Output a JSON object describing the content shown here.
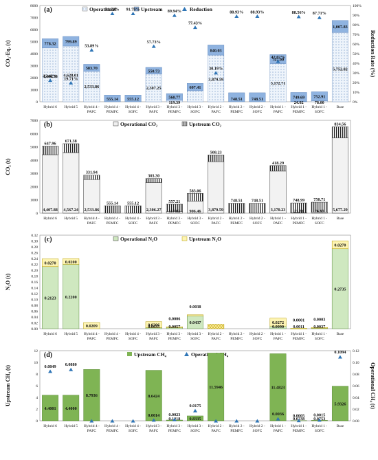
{
  "categories": [
    "Hybrid 6",
    "Hybrid 5",
    "Hybrid 4 - PAFC",
    "Hybrid 4 - PEMFC",
    "Hybrid 4 - SOFC",
    "Hybrid 3 - PAFC",
    "Hybrid 3 - PEMFC",
    "Hybrid 3 - SOFC",
    "Hybrid 2 - PAFC",
    "Hybrid 2 - PEMFC",
    "Hybrid 2 - SOFC",
    "Hybrid 1 - PAFC",
    "Hybrid 1 - PEMFC",
    "Hybrid 1 - SOFC",
    "Base"
  ],
  "colors": {
    "upstream_blue": "#8fb3e0",
    "op_blue": "#e6effa",
    "green": "#7fb454",
    "light_green": "#cfe8c0",
    "yellow": "#fdf4b3",
    "marker": "#2e75b6",
    "gray_fill": "#f2f2f2"
  },
  "chart_data": [
    {
      "panel": "(a)",
      "type": "bar",
      "stacked": true,
      "ylabel": "CO₂-Eq. (t)",
      "y2label": "Reduction Rate (%)",
      "ylim": [
        0,
        8000
      ],
      "y2lim": [
        0,
        100
      ],
      "yticks": [
        "0",
        "1000",
        "2000",
        "3000",
        "4000",
        "5000",
        "6000",
        "7000",
        "8000"
      ],
      "y2ticks": [
        "0%",
        "10%",
        "20%",
        "30%",
        "40%",
        "50%",
        "60%",
        "70%",
        "80%",
        "90%",
        "100%"
      ],
      "legend": [
        "Operational",
        "Upstream",
        "Reduction"
      ],
      "series": [
        {
          "name": "Operational",
          "values": [
            4466.53,
            4628.01,
            2533.86,
            0,
            0,
            2307.25,
            119.39,
            918.52,
            3879.59,
            0,
            0,
            3172.71,
            24.02,
            78.0,
            5752.82
          ],
          "labels": [
            "4,466.53",
            "4,628.01",
            "2,533.86",
            "",
            "",
            "2,307.25",
            "119.39",
            "918.52",
            "3,879.59",
            "",
            "",
            "3,172.71",
            "24.02",
            "78.00",
            "5,752.82"
          ]
        },
        {
          "name": "Upstream",
          "values": [
            778.32,
            799.89,
            583.7,
            555.14,
            555.12,
            550.73,
            560.77,
            607.41,
            840.03,
            748.51,
            748.51,
            747.0,
            749.69,
            752.91,
            1007.83
          ],
          "labels": [
            "778.32",
            "799.89",
            "583.70",
            "555.14",
            "555.12",
            "550.73",
            "560.77",
            "607.41",
            "840.03",
            "748.51",
            "748.51",
            "747.00",
            "749.69",
            "752.91",
            "1,007.83"
          ]
        },
        {
          "name": "Reduction",
          "values": [
            22.42,
            19.71,
            53.89,
            91.79,
            91.79,
            57.73,
            89.94,
            77.43,
            30.19,
            88.93,
            88.93,
            42.02,
            88.56,
            87.71,
            null
          ],
          "labels": [
            "22.42%",
            "19.71%",
            "53.89%",
            "91.79%",
            "91.79%",
            "57.73%",
            "89.94%",
            "77.43%",
            "30.19%",
            "88.93%",
            "88.93%",
            "42.02%",
            "88.56%",
            "87.71%",
            ""
          ]
        }
      ]
    },
    {
      "panel": "(b)",
      "type": "bar",
      "stacked": true,
      "ylabel": "CO₂ (t)",
      "ylim": [
        0,
        7000
      ],
      "yticks": [
        "0",
        "1000",
        "2000",
        "3000",
        "4000",
        "5000",
        "6000",
        "7000"
      ],
      "legend": [
        "Operational CO₂",
        "Upstream CO₂"
      ],
      "series": [
        {
          "name": "Operational CO₂",
          "values": [
            4407.88,
            4567.24,
            2533.86,
            0,
            0,
            2306.27,
            117.82,
            906.46,
            3879.59,
            0,
            0,
            3170.23,
            23.7,
            76.97,
            5677.29
          ],
          "labels": [
            "4,407.88",
            "4,567.24",
            "2,533.86",
            "",
            "",
            "2,306.27",
            "117.82",
            "906.46",
            "3,879.59",
            "",
            "",
            "3,170.23",
            "23.70",
            "76.97",
            "5,677.29"
          ]
        },
        {
          "name": "Upstream CO₂",
          "values": [
            647.96,
            671.38,
            331.94,
            555.14,
            555.12,
            303.3,
            557.21,
            583.06,
            508.23,
            748.51,
            748.51,
            418.29,
            748.99,
            750.71,
            834.56
          ],
          "labels": [
            "647.96",
            "671.38",
            "331.94",
            "555.14",
            "555.12",
            "303.30",
            "557.21",
            "583.06",
            "508.23",
            "748.51",
            "748.51",
            "418.29",
            "748.99",
            "750.71",
            "834.56"
          ]
        }
      ]
    },
    {
      "panel": "(c)",
      "type": "bar",
      "stacked": true,
      "ylabel": "N₂O (t)",
      "ylim": [
        0,
        0.32
      ],
      "yticks": [
        "0.00",
        "0.02",
        "0.04",
        "0.06",
        "0.08",
        "0.10",
        "0.12",
        "0.14",
        "0.16",
        "0.18",
        "0.20",
        "0.22",
        "0.24",
        "0.26",
        "0.28",
        "0.30",
        "0.32"
      ],
      "legend": [
        "Operational N₂O",
        "Upstream N₂O"
      ],
      "series": [
        {
          "name": "Operational N₂O",
          "values": [
            0.2123,
            0.22,
            0,
            0,
            0,
            0.0035,
            0.0057,
            0.0437,
            0,
            0,
            0,
            0.009,
            0.0011,
            0.0037,
            0.2735
          ],
          "labels": [
            "0.2123",
            "0.2200",
            "",
            "",
            "",
            "0.0035",
            "0.0057",
            "0.0437",
            "",
            "",
            "",
            "0.0090",
            "0.0011",
            "0.0037",
            "0.2735"
          ]
        },
        {
          "name": "Upstream N₂O",
          "values": [
            0.027,
            0.02,
            0.0209,
            0,
            0,
            0.0206,
            0.0006,
            0.0038,
            0.015,
            0,
            0,
            0.0272,
            0.0001,
            0.0003,
            0.027
          ],
          "labels": [
            "0.0270",
            "0.0200",
            "0.0209",
            "",
            "",
            "0.0206",
            "0.0006",
            "0.0038",
            "",
            "",
            "",
            "0.0272",
            "0.0001",
            "0.0003",
            "0.0270"
          ]
        }
      ]
    },
    {
      "panel": "(d)",
      "type": "bar",
      "ylabel": "Upstream CH₄ (t)",
      "y2label": "Operational CH₄ (t)",
      "ylim": [
        0,
        12
      ],
      "y2lim": [
        0,
        0.12
      ],
      "yticks": [
        "0",
        "2",
        "4",
        "6",
        "8",
        "10",
        "12"
      ],
      "y2ticks": [
        "0.00",
        "0.02",
        "0.04",
        "0.06",
        "0.08",
        "0.10",
        "0.12"
      ],
      "legend": [
        "Upstream CH₄",
        "Operational CH₄"
      ],
      "series": [
        {
          "name": "Upstream CH₄",
          "values": [
            4.4001,
            4.4,
            8.7936,
            0,
            0,
            8.6424,
            0.1218,
            0.8335,
            11.5946,
            0,
            0,
            11.4823,
            0.0238,
            0.0753,
            5.9326
          ],
          "labels": [
            "4.4001",
            "4.4000",
            "8.7936",
            "",
            "",
            "8.6424",
            "0.1218",
            "0.8335",
            "11.5946",
            "",
            "",
            "11.4823",
            "0.0238",
            "0.0753",
            "5.9326"
          ]
        },
        {
          "name": "Operational CH₄",
          "values": [
            0.0849,
            0.088,
            0,
            0,
            0,
            0.0014,
            0.0023,
            0.0175,
            0,
            0,
            0,
            0.0036,
            0.0005,
            0.0015,
            0.1094
          ],
          "labels": [
            "0.0849",
            "0.0880",
            "",
            "",
            "",
            "0.0014",
            "0.0023",
            "0.0175",
            "",
            "",
            "",
            "0.0036",
            "0.0005",
            "0.0015",
            "0.1094"
          ]
        }
      ]
    }
  ]
}
